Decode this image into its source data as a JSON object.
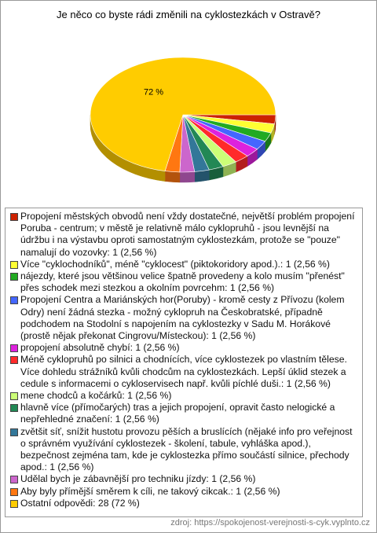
{
  "chart_data": {
    "type": "pie",
    "title": "Je něco co byste rádi změnili na cyklostezkách v Ostravě?",
    "categories": [
      "Propojení městských obvodů není vždy dostatečné, největší problém propojení Poruba - centrum; v městě je relativně málo cyklopruhů - jsou levnější na údržbu i na výstavbu oproti samostatným cyklostezkám, protože se \"pouze\" namalují do vozovky: 1 (2,56 %)",
      "Více \"cyklochodníků\", méně \"cyklocest\" (piktokoridory apod.).: 1 (2,56 %)",
      "nájezdy, které jsou většinou velice špatně provedeny a kolo musím \"přenést\" přes schodek mezi stezkou a okolním povrcehm: 1 (2,56 %)",
      "Propojení Centra a Mariánských hor(Poruby) - kromě cesty z Přívozu (kolem Odry) není žádná stezka - možný cyklopruh na Českobratské, případně podchodem na Stodolní s napojením na cyklostezky v Sadu M. Horákové (prostě nějak překonat Cingrovu/Místeckou): 1 (2,56 %)",
      "propojení absolutně chybí: 1 (2,56 %)",
      "Méně cyklopruhů po silnici a chodnících, více cyklostezek po vlastním tělese. Více dohledu strážníků kvůli chodcům na cyklostezkách. Lepší úklid stezek a cedule s informacemi o cykloservisech např. kvůli píchlé duši.: 1 (2,56 %)",
      "mene chodců a kočárků: 1 (2,56 %)",
      "hlavně více (přímočarých) tras a jejich propojení, opravit často nelogické a nepřehledné značení: 1 (2,56 %)",
      "zvětšit síť, snížit hustotu provozu pěších a bruslících (nějaké info pro veřejnost o správném využívání cyklostezek - školení, tabule, vyhláška apod.), bezpečnost zejména tam, kde je cyklostezka přímo součástí silnice, přechody apod.: 1 (2,56 %)",
      "Udělal bych je zábavnější pro techniku jízdy: 1 (2,56 %)",
      "Aby byly přímější směrem k cíli, ne takový cikcak.: 1 (2,56 %)",
      "Ostatní odpovědi: 28 (72 %)"
    ],
    "values": [
      2.56,
      2.56,
      2.56,
      2.56,
      2.56,
      2.56,
      2.56,
      2.56,
      2.56,
      2.56,
      2.56,
      72
    ],
    "value_labels": [
      null,
      null,
      null,
      null,
      null,
      null,
      null,
      null,
      null,
      null,
      null,
      "72 %"
    ],
    "colors": [
      "#cc2200",
      "#ffff33",
      "#22aa22",
      "#4466ff",
      "#dd22dd",
      "#ff2a2a",
      "#ccff77",
      "#228855",
      "#337799",
      "#cc66cc",
      "#ff7711",
      "#ffcc00"
    ],
    "source": "zdroj: https://spokojenost-verejnosti-s-cyk.vyplnto.cz"
  }
}
